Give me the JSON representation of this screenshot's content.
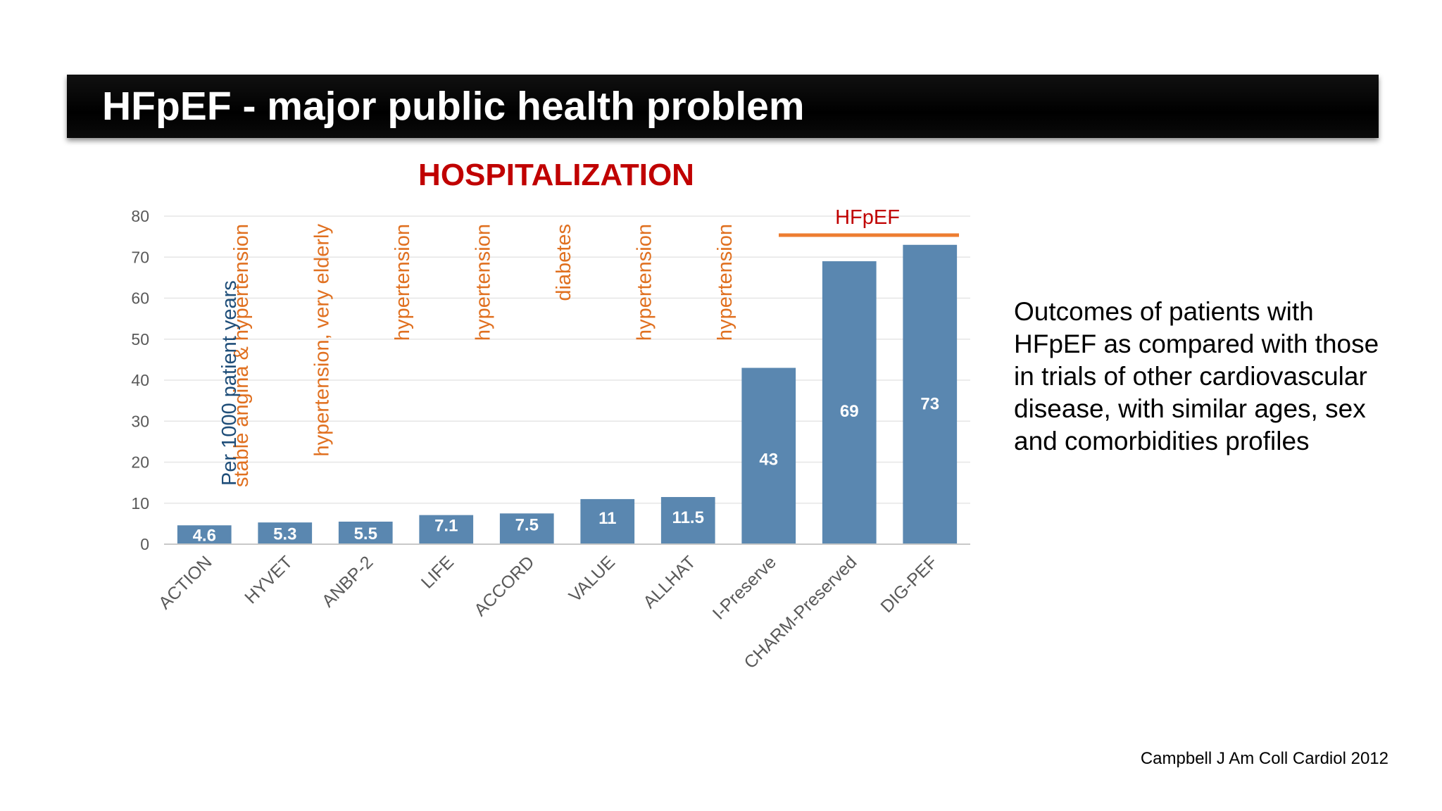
{
  "slide": {
    "title": "HFpEF - major public health problem",
    "side_text": "Outcomes of patients with HFpEF as compared with those in trials of other cardiovascular disease, with similar ages, sex and comorbidities profiles",
    "source": "Campbell J Am Coll Cardiol 2012"
  },
  "chart_data": {
    "type": "bar",
    "title": "HOSPITALIZATION",
    "ylabel": "Per 1000 patient years",
    "ylim": [
      0,
      80
    ],
    "yticks": [
      0,
      10,
      20,
      30,
      40,
      50,
      60,
      70,
      80
    ],
    "categories": [
      "ACTION",
      "HYVET",
      "ANBP-2",
      "LIFE",
      "ACCORD",
      "VALUE",
      "ALLHAT",
      "I-Preserve",
      "CHARM-Preserved",
      "DIG-PEF"
    ],
    "values": [
      4.6,
      5.3,
      5.5,
      7.1,
      7.5,
      11,
      11.5,
      43,
      69,
      73
    ],
    "value_labels": [
      "4.6",
      "5.3",
      "5.5",
      "7.1",
      "7.5",
      "11",
      "11.5",
      "43",
      "69",
      "73"
    ],
    "category_notes": [
      "",
      "stable angina & hypertension",
      "hypertension, very elderly",
      "hypertension",
      "hypertension",
      "diabetes",
      "hypertension",
      "hypertension",
      "",
      ""
    ],
    "group_annotation": {
      "label": "HFpEF",
      "categories": [
        "I-Preserve",
        "CHARM-Preserved",
        "DIG-PEF"
      ]
    },
    "grid": true,
    "legend": "none",
    "colors": {
      "bar": "#5a87b0",
      "grid": "#e6e6e6",
      "note": "#e07020",
      "ylabel": "#1f4e79",
      "title": "#c00000",
      "hfpef_line": "#ed7d31"
    }
  }
}
